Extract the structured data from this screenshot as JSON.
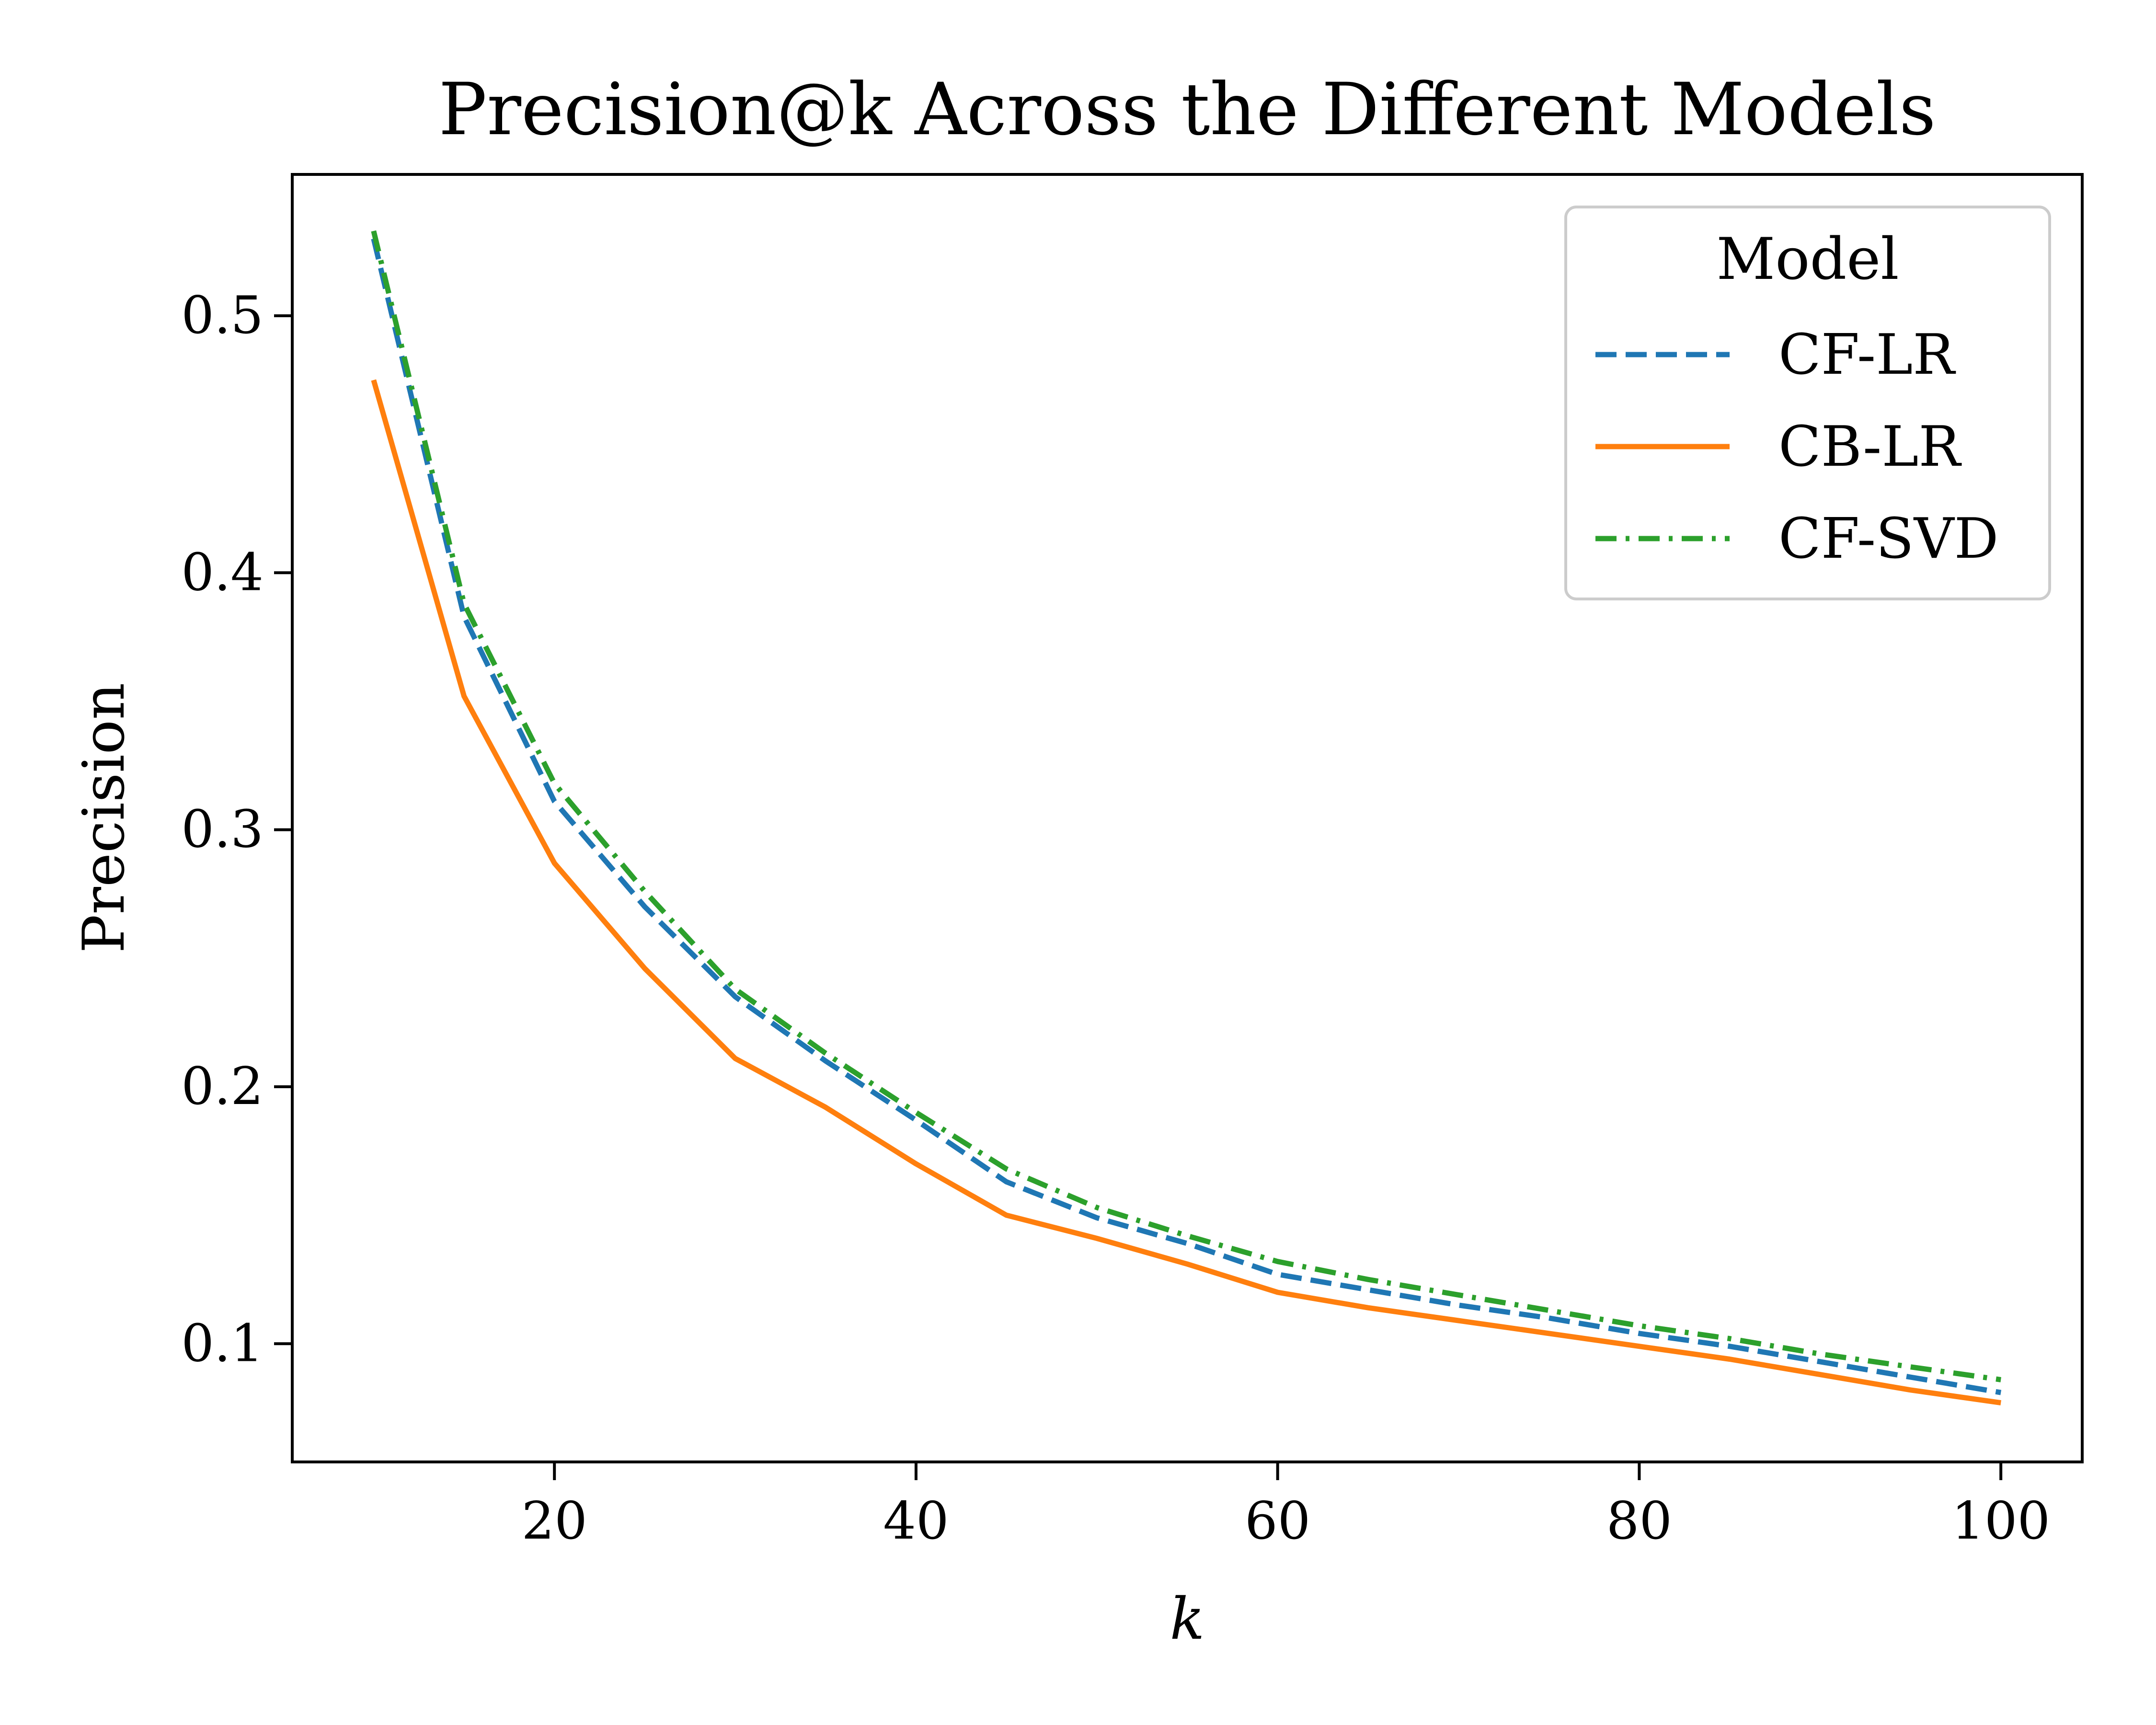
{
  "chart_data": {
    "type": "line",
    "title": "Precision@k Across the Different Models",
    "xlabel": "k",
    "ylabel": "Precision",
    "xlim": [
      5.5,
      104.5
    ],
    "ylim": [
      0.054,
      0.555
    ],
    "xticks": [
      20,
      40,
      60,
      80,
      100
    ],
    "xtick_labels": [
      "20",
      "40",
      "60",
      "80",
      "100"
    ],
    "yticks": [
      0.1,
      0.2,
      0.3,
      0.4,
      0.5
    ],
    "ytick_labels": [
      "0.1",
      "0.2",
      "0.3",
      "0.4",
      "0.5"
    ],
    "grid": false,
    "legend": {
      "title": "Model",
      "placement": "top-right"
    },
    "x": [
      10,
      15,
      20,
      25,
      30,
      35,
      40,
      45,
      50,
      55,
      60,
      65,
      70,
      75,
      80,
      85,
      90,
      95,
      100
    ],
    "series": [
      {
        "name": "CF-LR",
        "style": "dashed",
        "color": "#1f77b4",
        "values": [
          0.53,
          0.383,
          0.311,
          0.27,
          0.235,
          0.21,
          0.187,
          0.163,
          0.149,
          0.139,
          0.127,
          0.121,
          0.115,
          0.11,
          0.104,
          0.099,
          0.093,
          0.087,
          0.081
        ]
      },
      {
        "name": "CB-LR",
        "style": "solid",
        "color": "#ff7f0e",
        "values": [
          0.475,
          0.352,
          0.287,
          0.246,
          0.211,
          0.192,
          0.17,
          0.15,
          0.141,
          0.131,
          0.12,
          0.114,
          0.109,
          0.104,
          0.099,
          0.094,
          0.088,
          0.082,
          0.077
        ]
      },
      {
        "name": "CF-SVD",
        "style": "dashdot",
        "color": "#2ca02c",
        "values": [
          0.533,
          0.388,
          0.318,
          0.276,
          0.238,
          0.213,
          0.19,
          0.168,
          0.153,
          0.142,
          0.132,
          0.125,
          0.119,
          0.113,
          0.107,
          0.102,
          0.096,
          0.091,
          0.086
        ]
      }
    ]
  }
}
